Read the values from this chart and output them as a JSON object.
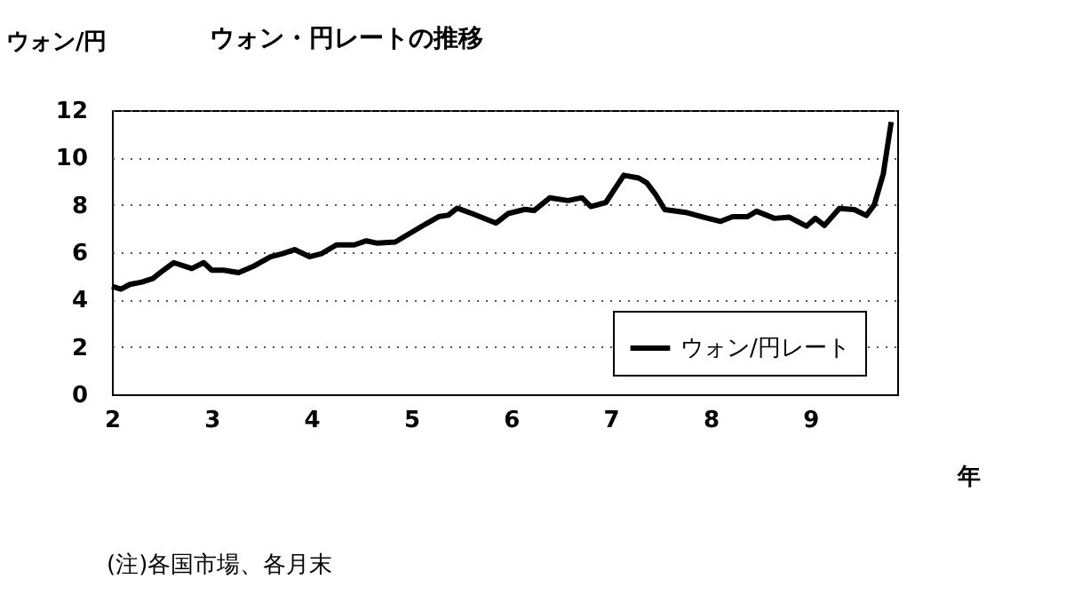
{
  "chart_data": {
    "type": "line",
    "title": "ウォン・円レートの推移",
    "ylabel": "ウォン/円",
    "xlabel": "年",
    "annotations": [
      "(注)各国市場、各月末"
    ],
    "x": [
      2.0,
      2.09,
      2.18,
      2.3,
      2.41,
      2.5,
      2.62,
      2.8,
      2.92,
      3.0,
      3.12,
      3.27,
      3.41,
      3.59,
      3.71,
      3.83,
      3.98,
      4.1,
      4.25,
      4.43,
      4.55,
      4.66,
      4.84,
      5.02,
      5.14,
      5.28,
      5.37,
      5.46,
      5.61,
      5.85,
      5.97,
      6.14,
      6.23,
      6.39,
      6.57,
      6.71,
      6.8,
      6.95,
      7.04,
      7.13,
      7.28,
      7.36,
      7.45,
      7.54,
      7.75,
      7.93,
      8.1,
      8.22,
      8.37,
      8.46,
      8.64,
      8.79,
      8.96,
      9.05,
      9.14,
      9.29,
      9.44,
      9.56,
      9.64,
      9.73,
      9.81
    ],
    "series": [
      {
        "name": "ウォン/円レート",
        "color": "#000000",
        "values": [
          4.56,
          4.44,
          4.64,
          4.74,
          4.89,
          5.19,
          5.56,
          5.31,
          5.56,
          5.24,
          5.24,
          5.14,
          5.39,
          5.81,
          5.94,
          6.11,
          5.81,
          5.94,
          6.31,
          6.31,
          6.48,
          6.38,
          6.43,
          6.88,
          7.18,
          7.51,
          7.56,
          7.86,
          7.63,
          7.23,
          7.63,
          7.81,
          7.76,
          8.3,
          8.18,
          8.3,
          7.93,
          8.1,
          8.68,
          9.25,
          9.13,
          8.93,
          8.43,
          7.8,
          7.68,
          7.48,
          7.3,
          7.5,
          7.5,
          7.73,
          7.43,
          7.48,
          7.1,
          7.43,
          7.13,
          7.85,
          7.8,
          7.55,
          8.0,
          9.3,
          11.5
        ]
      }
    ],
    "xlim": [
      2,
      9.87
    ],
    "xticks": [
      2,
      3,
      4,
      5,
      6,
      7,
      8,
      9
    ],
    "ylim": [
      0,
      12
    ],
    "yticks": [
      0,
      2,
      4,
      6,
      8,
      10,
      12
    ],
    "grid": "y",
    "legend": "bottom right",
    "line_style": "solid",
    "marker": "none"
  }
}
